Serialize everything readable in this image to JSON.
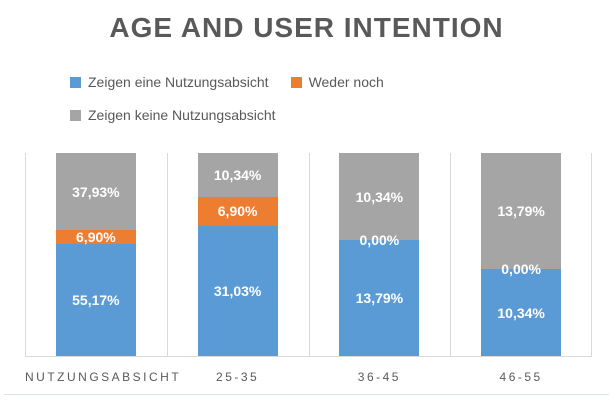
{
  "title": "AGE AND USER INTENTION",
  "legend": {
    "position": "top-left",
    "items": [
      {
        "label": "Zeigen eine Nutzungsabsicht",
        "color": "#5B9BD5"
      },
      {
        "label": "Weder noch",
        "color": "#ED7D31"
      },
      {
        "label": "Zeigen keine Nutzungsabsicht",
        "color": "#A5A5A5"
      }
    ]
  },
  "chart_data": {
    "type": "bar",
    "subtype": "percent-stacked-column",
    "title": "AGE AND USER INTENTION",
    "xlabel": "",
    "ylabel": "",
    "y_axis_visible": false,
    "grid": "vertical-column-separators",
    "legend_position": "top-left",
    "categories": [
      "NUTZUNGSABSICHT",
      "25-35",
      "36-45",
      "46-55"
    ],
    "series": [
      {
        "name": "Zeigen eine Nutzungsabsicht",
        "color": "#5B9BD5",
        "values": [
          55.17,
          31.03,
          13.79,
          10.34
        ],
        "labels": [
          "55,17%",
          "31,03%",
          "13,79%",
          "10,34%"
        ]
      },
      {
        "name": "Weder noch",
        "color": "#ED7D31",
        "values": [
          6.9,
          6.9,
          0.0,
          0.0
        ],
        "labels": [
          "6,90%",
          "6,90%",
          "0,00%",
          "0,00%"
        ]
      },
      {
        "name": "Zeigen keine Nutzungsabsicht",
        "color": "#A5A5A5",
        "values": [
          37.93,
          10.34,
          10.34,
          13.79
        ],
        "labels": [
          "37,93%",
          "10,34%",
          "10,34%",
          "13,79%"
        ]
      }
    ]
  },
  "colors": {
    "background": "#FFFFFF",
    "text": "#595959",
    "data_label_text": "#FFFFFF",
    "gridline": "#D9D9D9",
    "bottom_border": "#DCE3EC",
    "series_blue": "#5B9BD5",
    "series_orange": "#ED7D31",
    "series_gray": "#A5A5A5"
  }
}
